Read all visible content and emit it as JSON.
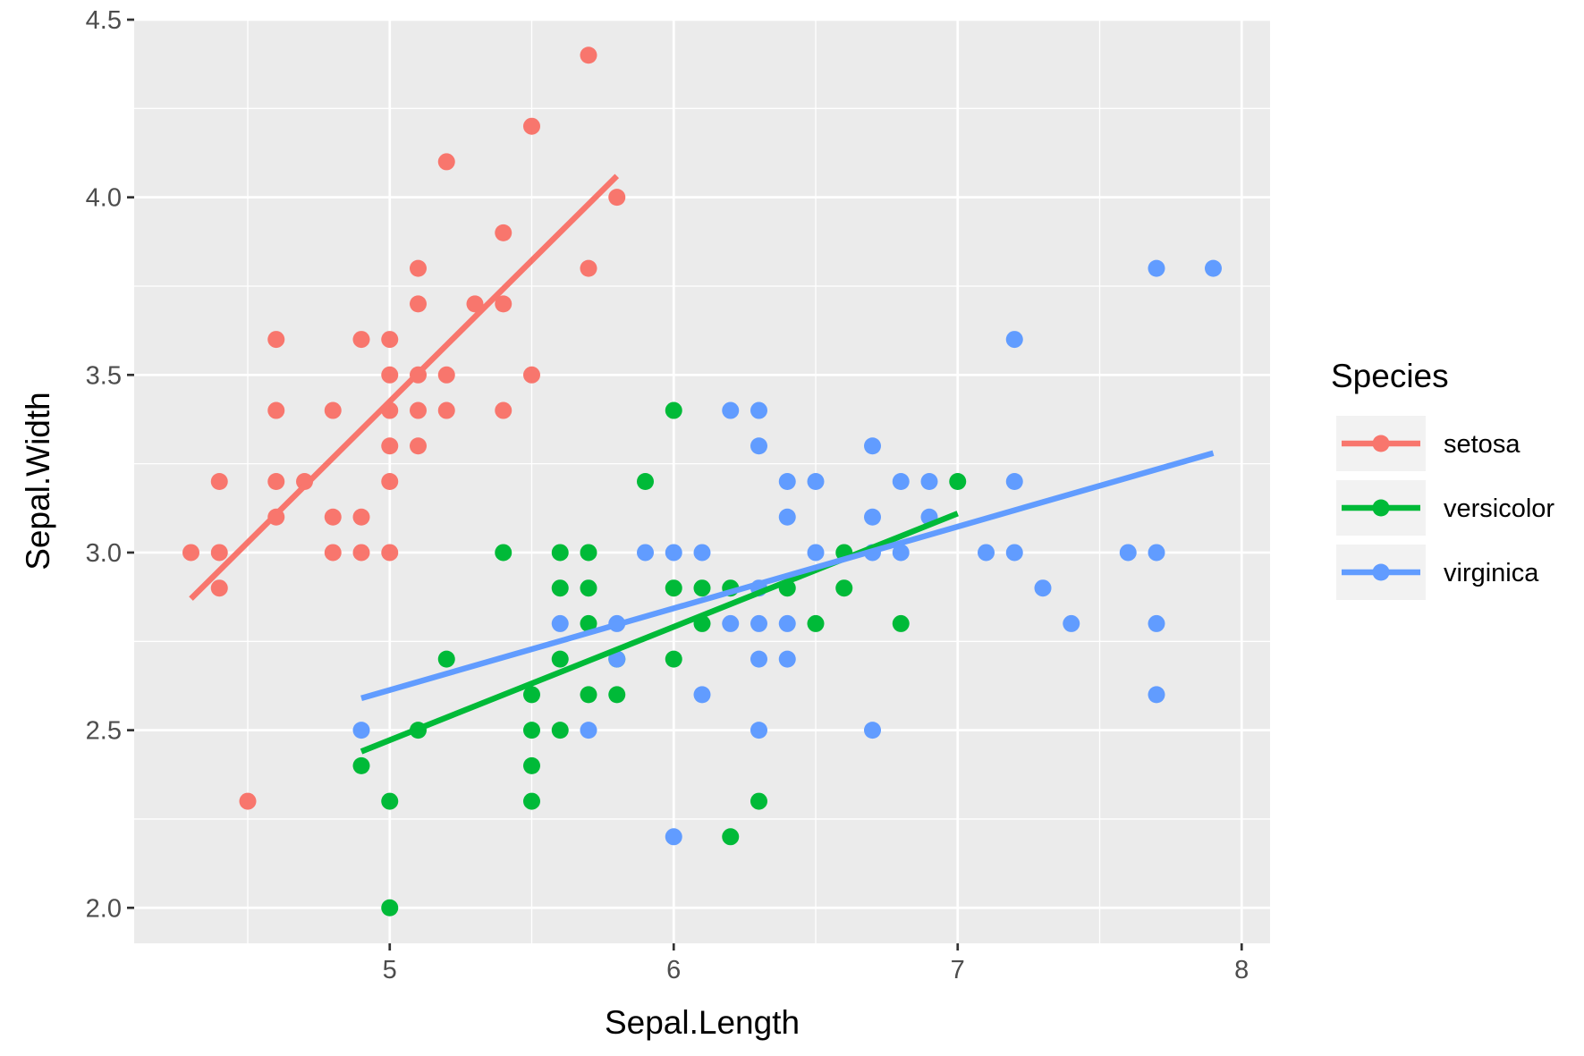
{
  "chart_data": {
    "type": "scatter",
    "xlabel": "Sepal.Length",
    "ylabel": "Sepal.Width",
    "xlim": [
      4.1,
      8.1
    ],
    "ylim": [
      1.9,
      4.5
    ],
    "x_ticks": [
      5,
      6,
      7,
      8
    ],
    "y_ticks": [
      2.0,
      2.5,
      3.0,
      3.5,
      4.0,
      4.5
    ],
    "x_tick_labels": [
      "5",
      "6",
      "7",
      "8"
    ],
    "y_tick_labels": [
      "2.0",
      "2.5",
      "3.0",
      "3.5",
      "4.0",
      "4.5"
    ],
    "grid": true,
    "legend": {
      "title": "Species",
      "position": "right"
    },
    "series": [
      {
        "name": "setosa",
        "color": "#F8766D",
        "points": [
          [
            5.7,
            4.4
          ],
          [
            5.5,
            4.2
          ],
          [
            5.2,
            4.1
          ],
          [
            5.8,
            4.0
          ],
          [
            5.4,
            3.9
          ],
          [
            5.1,
            3.8
          ],
          [
            5.7,
            3.8
          ],
          [
            5.1,
            3.7
          ],
          [
            5.3,
            3.7
          ],
          [
            5.4,
            3.7
          ],
          [
            4.6,
            3.6
          ],
          [
            4.9,
            3.6
          ],
          [
            5.0,
            3.6
          ],
          [
            5.0,
            3.5
          ],
          [
            5.1,
            3.5
          ],
          [
            5.2,
            3.5
          ],
          [
            5.5,
            3.5
          ],
          [
            4.6,
            3.4
          ],
          [
            4.8,
            3.4
          ],
          [
            5.0,
            3.4
          ],
          [
            5.1,
            3.4
          ],
          [
            5.2,
            3.4
          ],
          [
            5.4,
            3.4
          ],
          [
            5.0,
            3.3
          ],
          [
            5.1,
            3.3
          ],
          [
            4.4,
            3.2
          ],
          [
            4.6,
            3.2
          ],
          [
            4.7,
            3.2
          ],
          [
            5.0,
            3.2
          ],
          [
            4.6,
            3.1
          ],
          [
            4.8,
            3.1
          ],
          [
            4.9,
            3.1
          ],
          [
            4.3,
            3.0
          ],
          [
            4.4,
            3.0
          ],
          [
            4.8,
            3.0
          ],
          [
            4.9,
            3.0
          ],
          [
            5.0,
            3.0
          ],
          [
            4.4,
            2.9
          ],
          [
            4.5,
            2.3
          ]
        ],
        "fit": {
          "x": [
            4.3,
            5.8
          ],
          "y": [
            2.87,
            4.06
          ]
        }
      },
      {
        "name": "versicolor",
        "color": "#00BA38",
        "points": [
          [
            6.0,
            3.4
          ],
          [
            5.9,
            3.2
          ],
          [
            7.0,
            3.2
          ],
          [
            5.4,
            3.0
          ],
          [
            5.6,
            3.0
          ],
          [
            5.7,
            3.0
          ],
          [
            6.6,
            3.0
          ],
          [
            5.6,
            2.9
          ],
          [
            5.7,
            2.9
          ],
          [
            6.0,
            2.9
          ],
          [
            6.1,
            2.9
          ],
          [
            6.2,
            2.9
          ],
          [
            6.4,
            2.9
          ],
          [
            6.6,
            2.9
          ],
          [
            5.7,
            2.8
          ],
          [
            6.1,
            2.8
          ],
          [
            6.5,
            2.8
          ],
          [
            6.8,
            2.8
          ],
          [
            5.2,
            2.7
          ],
          [
            5.6,
            2.7
          ],
          [
            6.0,
            2.7
          ],
          [
            5.8,
            2.7
          ],
          [
            5.5,
            2.6
          ],
          [
            5.7,
            2.6
          ],
          [
            5.8,
            2.6
          ],
          [
            5.1,
            2.5
          ],
          [
            5.5,
            2.5
          ],
          [
            5.6,
            2.5
          ],
          [
            4.9,
            2.4
          ],
          [
            5.5,
            2.4
          ],
          [
            5.0,
            2.3
          ],
          [
            5.5,
            2.3
          ],
          [
            6.3,
            2.3
          ],
          [
            6.2,
            2.2
          ],
          [
            5.0,
            2.0
          ]
        ],
        "fit": {
          "x": [
            4.9,
            7.0
          ],
          "y": [
            2.44,
            3.11
          ]
        }
      },
      {
        "name": "virginica",
        "color": "#619CFF",
        "points": [
          [
            7.7,
            3.8
          ],
          [
            7.9,
            3.8
          ],
          [
            7.2,
            3.6
          ],
          [
            6.2,
            3.4
          ],
          [
            6.3,
            3.4
          ],
          [
            6.3,
            3.3
          ],
          [
            6.7,
            3.3
          ],
          [
            6.4,
            3.2
          ],
          [
            6.5,
            3.2
          ],
          [
            6.8,
            3.2
          ],
          [
            6.9,
            3.2
          ],
          [
            7.2,
            3.2
          ],
          [
            6.4,
            3.1
          ],
          [
            6.7,
            3.1
          ],
          [
            6.9,
            3.1
          ],
          [
            5.9,
            3.0
          ],
          [
            6.0,
            3.0
          ],
          [
            6.1,
            3.0
          ],
          [
            6.5,
            3.0
          ],
          [
            6.7,
            3.0
          ],
          [
            6.8,
            3.0
          ],
          [
            7.1,
            3.0
          ],
          [
            7.2,
            3.0
          ],
          [
            7.6,
            3.0
          ],
          [
            7.7,
            3.0
          ],
          [
            6.3,
            2.9
          ],
          [
            7.3,
            2.9
          ],
          [
            5.6,
            2.8
          ],
          [
            5.8,
            2.8
          ],
          [
            6.2,
            2.8
          ],
          [
            6.3,
            2.8
          ],
          [
            6.4,
            2.8
          ],
          [
            7.4,
            2.8
          ],
          [
            7.7,
            2.8
          ],
          [
            5.8,
            2.7
          ],
          [
            6.3,
            2.7
          ],
          [
            6.4,
            2.7
          ],
          [
            6.1,
            2.6
          ],
          [
            7.7,
            2.6
          ],
          [
            4.9,
            2.5
          ],
          [
            5.7,
            2.5
          ],
          [
            6.3,
            2.5
          ],
          [
            6.7,
            2.5
          ],
          [
            6.0,
            2.2
          ]
        ],
        "fit": {
          "x": [
            4.9,
            7.9
          ],
          "y": [
            2.59,
            3.28
          ]
        }
      }
    ]
  }
}
